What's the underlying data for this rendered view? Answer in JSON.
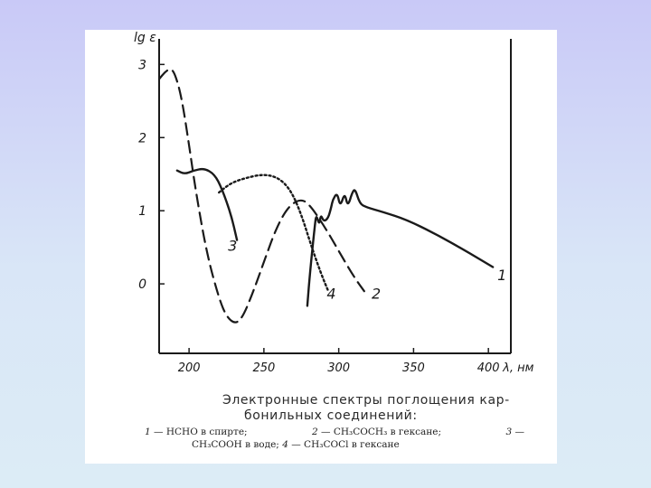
{
  "chart_data": {
    "type": "line",
    "ylabel": "lg ε",
    "xlabel": "λ, нм",
    "xlim": [
      180,
      415
    ],
    "ylim": [
      -0.95,
      3.35
    ],
    "x_ticks": [
      "200",
      "250",
      "300",
      "350",
      "400"
    ],
    "x_tick_values": [
      200,
      250,
      300,
      350,
      400
    ],
    "y_ticks": [
      "3",
      "2",
      "1",
      "0"
    ],
    "y_tick_values": [
      3,
      2,
      1,
      0
    ],
    "grid": false,
    "series": [
      {
        "name": "1",
        "style": "solid",
        "points": [
          [
            279,
            -0.3
          ],
          [
            281,
            0.2
          ],
          [
            284,
            0.8
          ],
          [
            285,
            0.95
          ],
          [
            287,
            0.8
          ],
          [
            288,
            0.95
          ],
          [
            290,
            0.85
          ],
          [
            293,
            0.9
          ],
          [
            295,
            1.05
          ],
          [
            296,
            1.15
          ],
          [
            299,
            1.25
          ],
          [
            301,
            1.05
          ],
          [
            304,
            1.25
          ],
          [
            306,
            1.05
          ],
          [
            309,
            1.25
          ],
          [
            311,
            1.3
          ],
          [
            314,
            1.1
          ],
          [
            318,
            1.05
          ],
          [
            330,
            0.98
          ],
          [
            345,
            0.88
          ],
          [
            365,
            0.68
          ],
          [
            385,
            0.45
          ],
          [
            403,
            0.23
          ]
        ]
      },
      {
        "name": "2",
        "style": "dashed",
        "points": [
          [
            180,
            2.8
          ],
          [
            184,
            2.9
          ],
          [
            188,
            2.95
          ],
          [
            191,
            2.85
          ],
          [
            195,
            2.55
          ],
          [
            200,
            1.9
          ],
          [
            205,
            1.2
          ],
          [
            212,
            0.4
          ],
          [
            220,
            -0.2
          ],
          [
            225,
            -0.45
          ],
          [
            231,
            -0.55
          ],
          [
            236,
            -0.45
          ],
          [
            243,
            -0.1
          ],
          [
            250,
            0.3
          ],
          [
            258,
            0.75
          ],
          [
            266,
            1.05
          ],
          [
            274,
            1.16
          ],
          [
            280,
            1.1
          ],
          [
            290,
            0.8
          ],
          [
            300,
            0.45
          ],
          [
            310,
            0.1
          ],
          [
            317,
            -0.1
          ]
        ]
      },
      {
        "name": "3",
        "style": "solid",
        "points": [
          [
            192,
            1.55
          ],
          [
            197,
            1.5
          ],
          [
            203,
            1.55
          ],
          [
            210,
            1.58
          ],
          [
            217,
            1.5
          ],
          [
            222,
            1.3
          ],
          [
            228,
            0.95
          ],
          [
            232,
            0.6
          ]
        ]
      },
      {
        "name": "4",
        "style": "dotted",
        "points": [
          [
            220,
            1.25
          ],
          [
            228,
            1.38
          ],
          [
            238,
            1.45
          ],
          [
            250,
            1.5
          ],
          [
            260,
            1.45
          ],
          [
            268,
            1.28
          ],
          [
            275,
            0.95
          ],
          [
            282,
            0.5
          ],
          [
            288,
            0.15
          ],
          [
            293,
            -0.1
          ]
        ]
      }
    ],
    "curve_labels": [
      "1",
      "2",
      "3",
      "4"
    ]
  },
  "caption": {
    "title_line1": "Электронные спектры поглощения кар-",
    "title_line2": "бонильных соединений:",
    "legend": [
      {
        "num": "1",
        "text": "— HCHO в спирте;"
      },
      {
        "num": "2",
        "text": "— CH₃COCH₃ в гексане;"
      },
      {
        "num": "3",
        "text": "—"
      },
      {
        "num": "",
        "text": "CH₃COOH в воде;"
      },
      {
        "num": "4",
        "text": "— CH₃COCl в гексане"
      }
    ]
  }
}
